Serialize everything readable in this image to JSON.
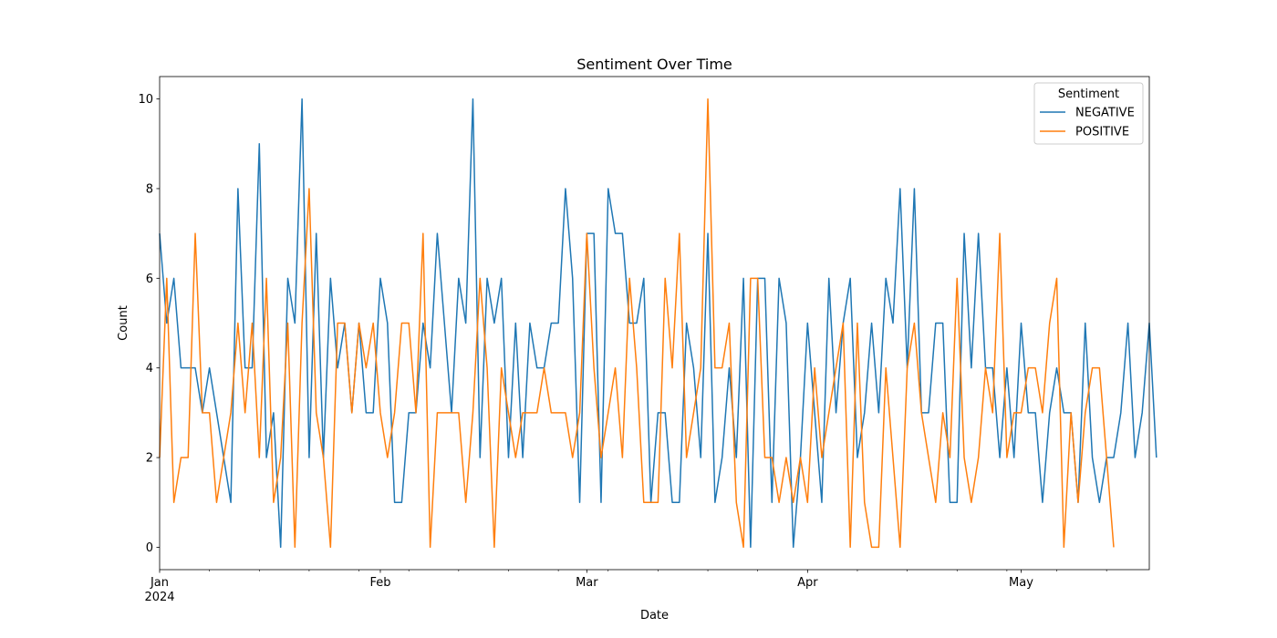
{
  "chart_data": {
    "type": "line",
    "title": "Sentiment Over Time",
    "xlabel": "Date",
    "ylabel": "Count",
    "ylim": [
      -0.5,
      10.5
    ],
    "xlim": [
      "2024-01-01",
      "2024-05-19"
    ],
    "grid": false,
    "y_ticks": [
      0,
      2,
      4,
      6,
      8,
      10
    ],
    "x_ticks": [
      {
        "date": "2024-01-01",
        "label": "Jan",
        "sublabel": "2024"
      },
      {
        "date": "2024-02-01",
        "label": "Feb",
        "sublabel": ""
      },
      {
        "date": "2024-03-01",
        "label": "Mar",
        "sublabel": ""
      },
      {
        "date": "2024-04-01",
        "label": "Apr",
        "sublabel": ""
      },
      {
        "date": "2024-05-01",
        "label": "May",
        "sublabel": ""
      }
    ],
    "x_minor_ticks": [
      "2024-01-08",
      "2024-01-15",
      "2024-01-22",
      "2024-01-29",
      "2024-02-05",
      "2024-02-12",
      "2024-02-19",
      "2024-02-26",
      "2024-03-04",
      "2024-03-11",
      "2024-03-18",
      "2024-03-25",
      "2024-04-08",
      "2024-04-15",
      "2024-04-22",
      "2024-04-29",
      "2024-05-06",
      "2024-05-13"
    ],
    "legend": {
      "title": "Sentiment",
      "placement": "top-right"
    },
    "start_date": "2024-01-01",
    "series": [
      {
        "name": "NEGATIVE",
        "color": "#1f77b4",
        "values": [
          7,
          5,
          6,
          4,
          4,
          4,
          3,
          4,
          3,
          2,
          1,
          8,
          4,
          4,
          9,
          2,
          3,
          0,
          6,
          5,
          10,
          2,
          7,
          2,
          6,
          4,
          5,
          3,
          5,
          3,
          3,
          6,
          5,
          1,
          1,
          3,
          3,
          5,
          4,
          7,
          5,
          3,
          6,
          5,
          10,
          2,
          6,
          5,
          6,
          2,
          5,
          2,
          5,
          4,
          4,
          5,
          5,
          8,
          6,
          1,
          7,
          7,
          1,
          8,
          7,
          7,
          5,
          5,
          6,
          1,
          3,
          3,
          1,
          1,
          5,
          4,
          2,
          7,
          1,
          2,
          4,
          2,
          6,
          0,
          6,
          6,
          1,
          6,
          5,
          0,
          2,
          5,
          3,
          1,
          6,
          3,
          5,
          6,
          2,
          3,
          5,
          3,
          6,
          5,
          8,
          4,
          8,
          3,
          3,
          5,
          5,
          1,
          1,
          7,
          4,
          7,
          4,
          4,
          2,
          4,
          2,
          5,
          3,
          3,
          1,
          3,
          4,
          3,
          3,
          1,
          5,
          2,
          1,
          2,
          2,
          3,
          5,
          2,
          3,
          5,
          2
        ]
      },
      {
        "name": "POSITIVE",
        "color": "#ff7f0e",
        "values": [
          2,
          6,
          1,
          2,
          2,
          7,
          3,
          3,
          1,
          2,
          3,
          5,
          3,
          5,
          2,
          6,
          1,
          2,
          5,
          0,
          5,
          8,
          3,
          2,
          0,
          5,
          5,
          3,
          5,
          4,
          5,
          3,
          2,
          3,
          5,
          5,
          3,
          7,
          0,
          3,
          3,
          3,
          3,
          1,
          3,
          6,
          4,
          0,
          4,
          3,
          2,
          3,
          3,
          3,
          4,
          3,
          3,
          3,
          2,
          3,
          7,
          4,
          2,
          3,
          4,
          2,
          6,
          4,
          1,
          1,
          1,
          6,
          4,
          7,
          2,
          3,
          4,
          10,
          4,
          4,
          5,
          1,
          0,
          6,
          6,
          2,
          2,
          1,
          2,
          1,
          2,
          1,
          4,
          2,
          3,
          4,
          5,
          0,
          5,
          1,
          0,
          0,
          4,
          2,
          0,
          4,
          5,
          3,
          2,
          1,
          3,
          2,
          6,
          2,
          1,
          2,
          4,
          3,
          7,
          2,
          3,
          3,
          4,
          4,
          3,
          5,
          6,
          0,
          3,
          1,
          3,
          4,
          4,
          2,
          0
        ]
      }
    ]
  }
}
